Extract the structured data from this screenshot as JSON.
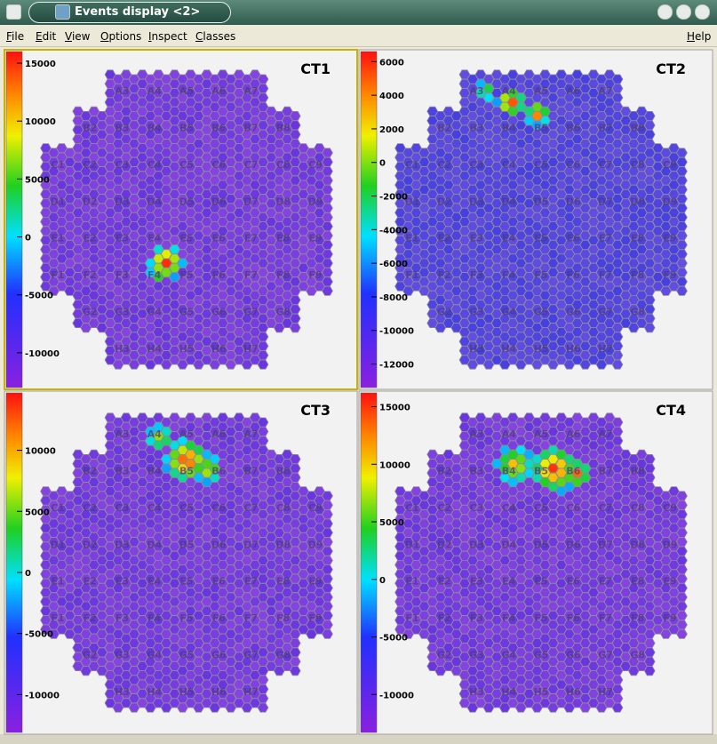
{
  "window": {
    "title": "Events display <2>"
  },
  "menu": [
    "File",
    "Edit",
    "View",
    "Options",
    "Inspect",
    "Classes",
    "Help"
  ],
  "camera": {
    "rows": [
      [
        "A3",
        "A4",
        "A5",
        "A6",
        "A7"
      ],
      [
        "B2",
        "B3",
        "B4",
        "B5",
        "B6",
        "B7",
        "B8"
      ],
      [
        "C1",
        "C2",
        "C3",
        "C4",
        "C5",
        "C6",
        "C7",
        "C8",
        "C9"
      ],
      [
        "D1",
        "D2",
        "D3",
        "D4",
        "D5",
        "D6",
        "D7",
        "D8",
        "D9"
      ],
      [
        "E1",
        "E2",
        "E3",
        "E4",
        "E5",
        "E6",
        "E7",
        "E8",
        "E9"
      ],
      [
        "F1",
        "F2",
        "F3",
        "F4",
        "F5",
        "F6",
        "F7",
        "F8",
        "F9"
      ],
      [
        "G2",
        "G3",
        "G4",
        "G5",
        "G6",
        "G7",
        "G8"
      ],
      [
        "H3",
        "H4",
        "H5",
        "H6",
        "H7"
      ]
    ]
  },
  "panels": [
    {
      "title": "CT1",
      "scale": {
        "range": [
          -13000,
          16000
        ],
        "ticks": [
          15000,
          10000,
          5000,
          0,
          -5000,
          -10000
        ]
      }
    },
    {
      "title": "CT2",
      "scale": {
        "range": [
          -13400,
          6600
        ],
        "ticks": [
          6000,
          4000,
          2000,
          0,
          -2000,
          -4000,
          -6000,
          -8000,
          -10000,
          -12000
        ]
      }
    },
    {
      "title": "CT3",
      "scale": {
        "range": [
          -13100,
          14700
        ],
        "ticks": [
          10000,
          5000,
          0,
          -5000,
          -10000
        ]
      }
    },
    {
      "title": "CT4",
      "scale": {
        "range": [
          -13300,
          16200
        ],
        "ticks": [
          15000,
          10000,
          5000,
          0,
          -5000,
          -10000
        ]
      }
    }
  ]
}
